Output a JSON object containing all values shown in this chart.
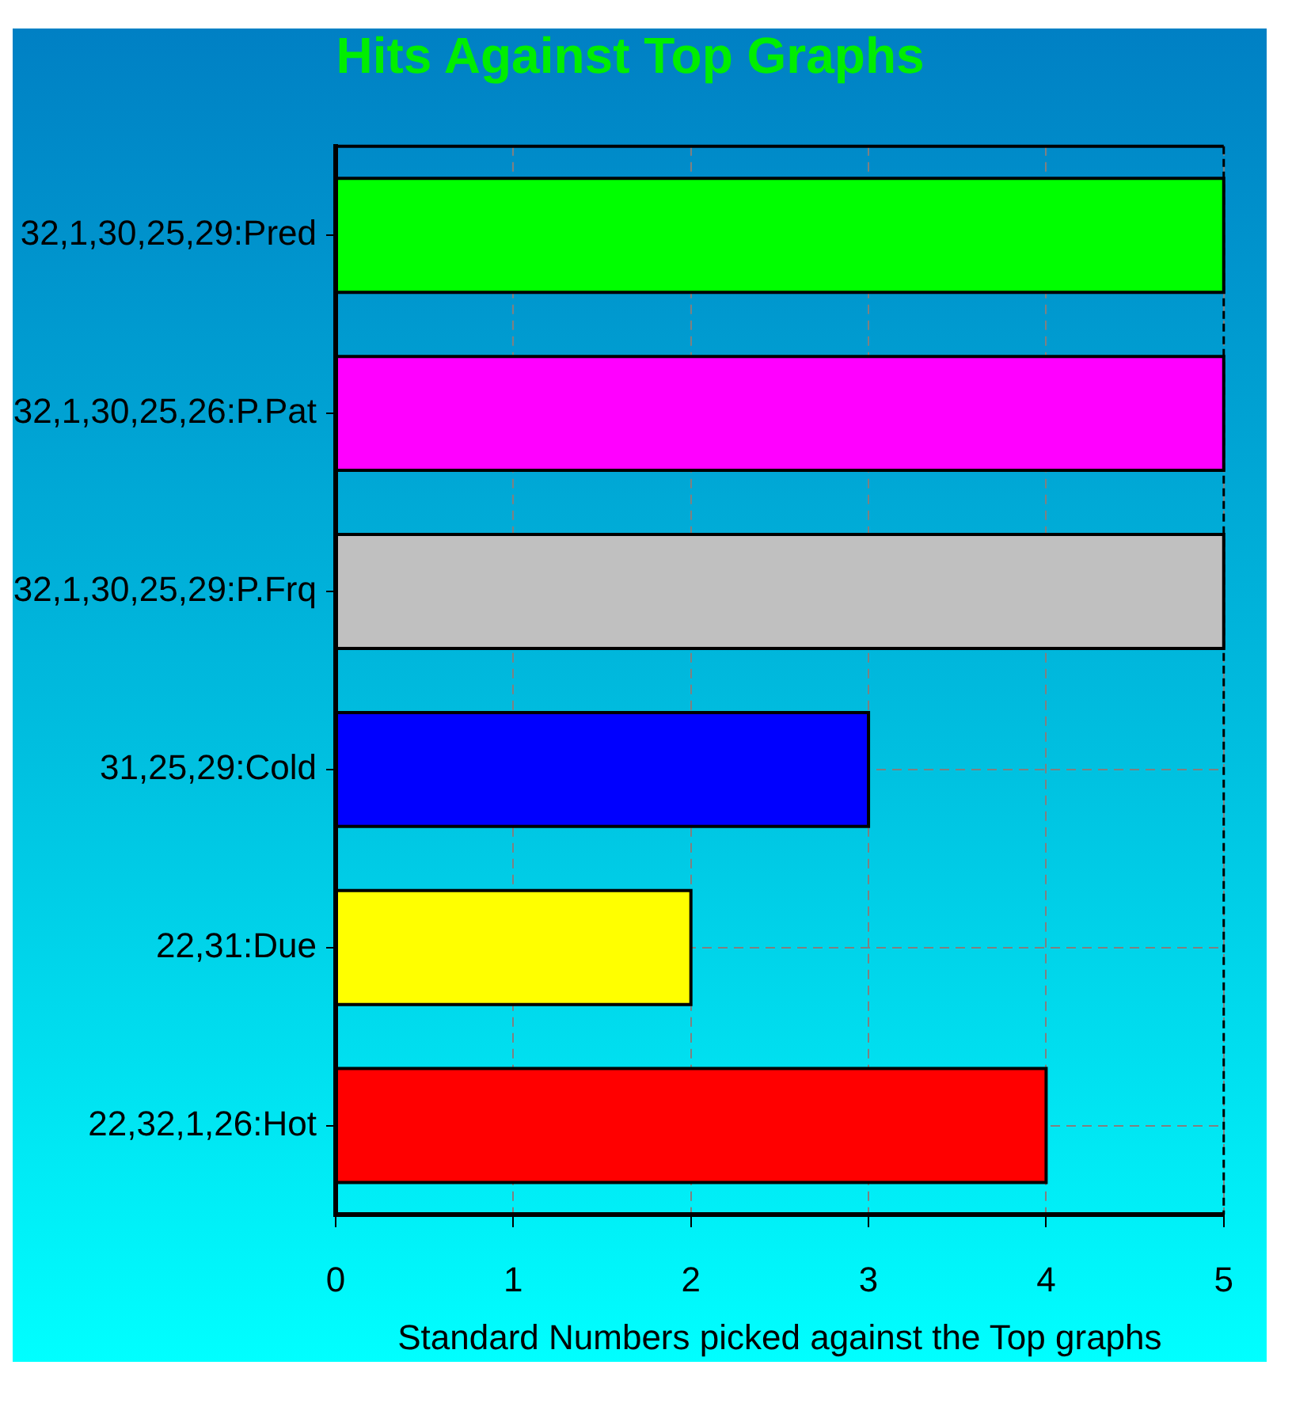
{
  "chart_data": {
    "type": "bar",
    "orientation": "horizontal",
    "title": "Hits Against Top Graphs",
    "xlabel": "Standard Numbers picked against the Top graphs",
    "categories": [
      "32,1,30,25,29:Pred",
      "32,1,30,25,26:P.Pat",
      "32,1,30,25,29:P.Frq",
      "31,25,29:Cold",
      "22,31:Due",
      "22,32,1,26:Hot"
    ],
    "values": [
      5,
      5,
      5,
      3,
      2,
      4
    ],
    "colors": [
      "#00ff00",
      "#ff00ff",
      "#c0c0c0",
      "#0000ff",
      "#ffff00",
      "#ff0000"
    ],
    "xlim": [
      0,
      5
    ],
    "xticks": [
      0,
      1,
      2,
      3,
      4,
      5
    ],
    "grid": true,
    "legend": false
  }
}
